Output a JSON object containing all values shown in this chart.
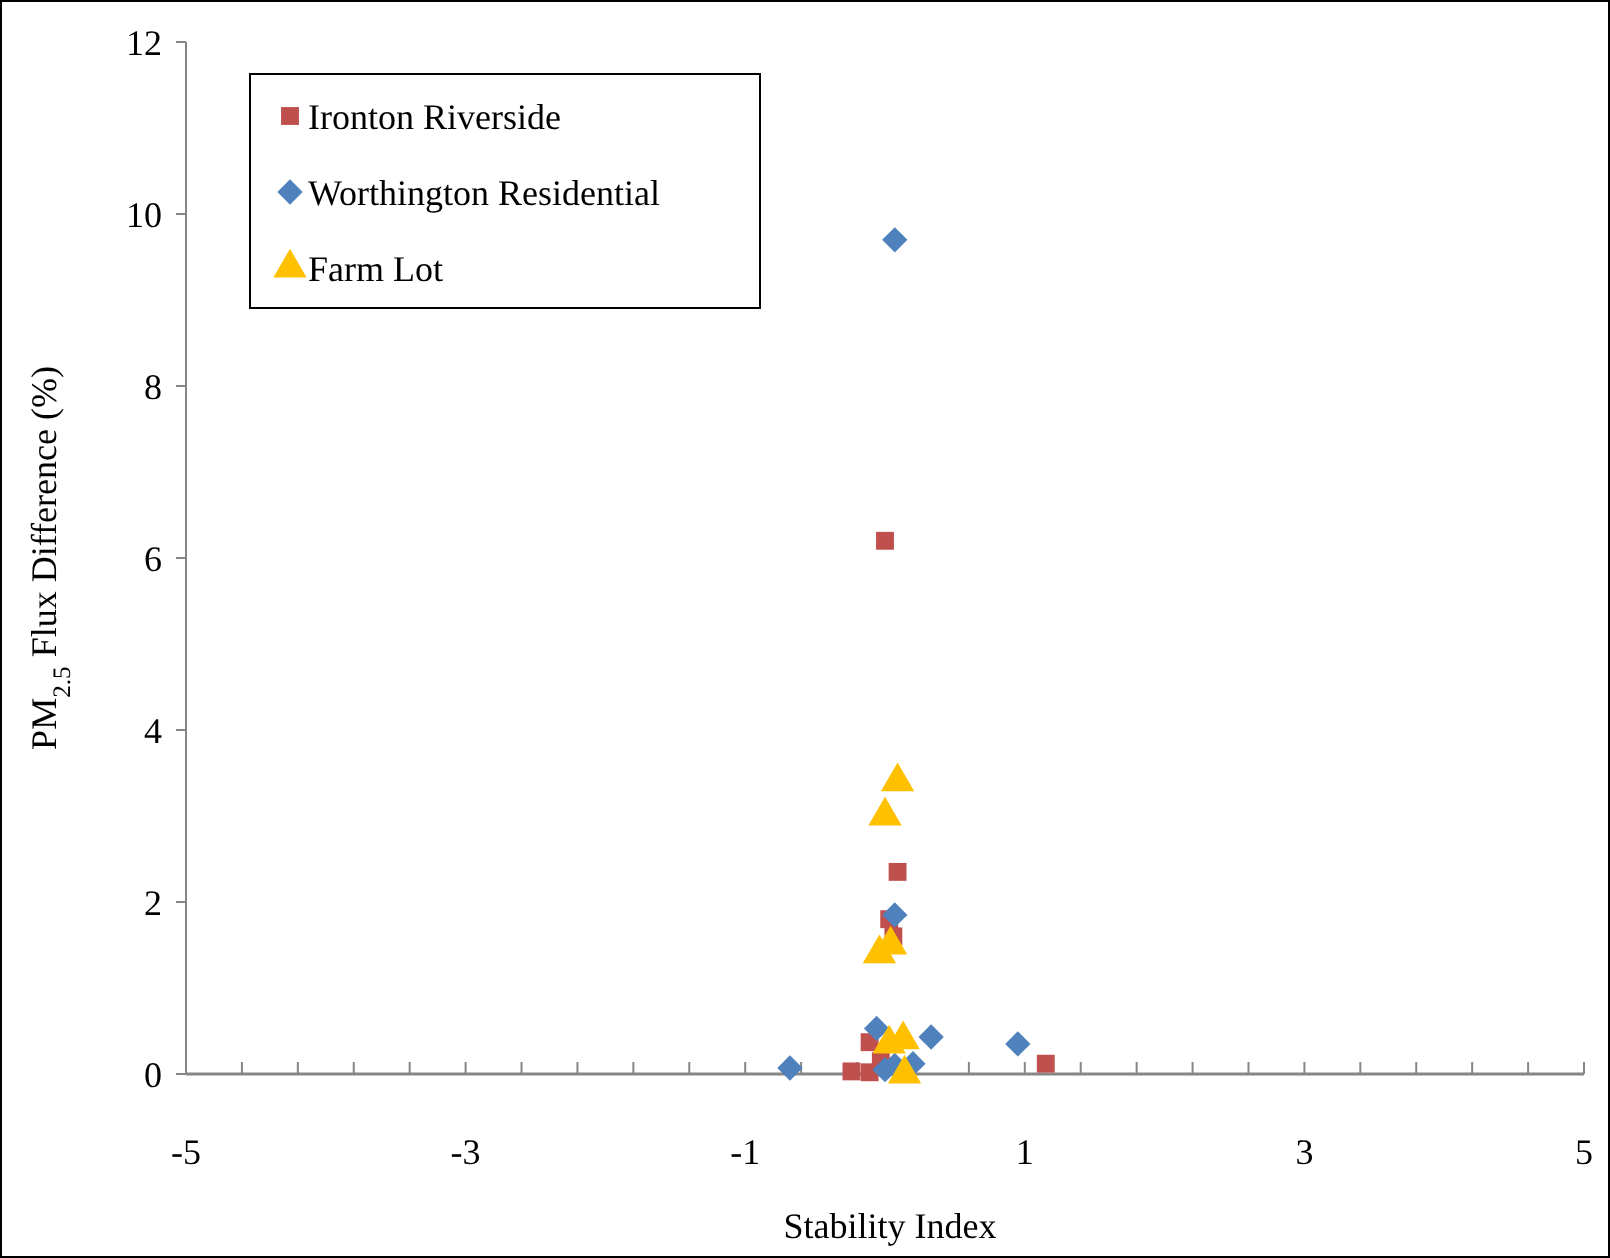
{
  "chart_data": {
    "type": "scatter",
    "xlabel": "Stability Index",
    "ylabel": "PM$_{2.5}$ Flux Difference (%)",
    "xlim": [
      -5,
      5
    ],
    "ylim": [
      0,
      12
    ],
    "xticks": [
      -5,
      {
        "value": -4.6,
        "label": null
      },
      {
        "value": -4.2,
        "label": null
      },
      {
        "value": -3.8,
        "label": null
      },
      {
        "value": -3.4,
        "label": null
      },
      -3,
      {
        "value": -2.6,
        "label": null
      },
      {
        "value": -2.2,
        "label": null
      },
      {
        "value": -1.8,
        "label": null
      },
      {
        "value": -1.4,
        "label": null
      },
      -1,
      {
        "value": -0.6,
        "label": null
      },
      {
        "value": -0.2,
        "label": null
      },
      {
        "value": 0.2,
        "label": null
      },
      {
        "value": 0.6,
        "label": null
      },
      1,
      {
        "value": 1.4,
        "label": null
      },
      {
        "value": 1.8,
        "label": null
      },
      {
        "value": 2.2,
        "label": null
      },
      {
        "value": 2.6,
        "label": null
      },
      3,
      {
        "value": 3.4,
        "label": null
      },
      {
        "value": 3.8,
        "label": null
      },
      {
        "value": 4.2,
        "label": null
      },
      {
        "value": 4.6,
        "label": null
      },
      5
    ],
    "yticks": [
      0,
      2,
      4,
      6,
      8,
      10,
      12
    ],
    "grid": false,
    "legend": "top left",
    "series": [
      {
        "name": "Ironton Riverside",
        "color": "#c0504d",
        "marker": "square",
        "x": [
          0.0,
          0.09,
          0.03,
          0.06,
          1.15,
          -0.24,
          -0.11,
          -0.11,
          -0.03
        ],
        "values": [
          6.2,
          2.35,
          1.8,
          1.6,
          0.12,
          0.03,
          0.37,
          0.02,
          0.15
        ]
      },
      {
        "name": "Worthington Residential",
        "color": "#4f81bd",
        "marker": "diamond",
        "x": [
          0.07,
          0.07,
          -0.68,
          -0.06,
          0.33,
          0.95,
          0.0,
          0.07,
          0.2
        ],
        "values": [
          9.7,
          1.85,
          0.07,
          0.53,
          0.43,
          0.35,
          0.05,
          0.1,
          0.12
        ]
      },
      {
        "name": "Farm Lot",
        "color": "#ffc000",
        "marker": "triangle",
        "x": [
          0.09,
          0.0,
          -0.04,
          0.04,
          0.03,
          0.13,
          0.14
        ],
        "values": [
          3.4,
          3.0,
          1.4,
          1.5,
          0.35,
          0.4,
          0.0
        ]
      }
    ]
  }
}
